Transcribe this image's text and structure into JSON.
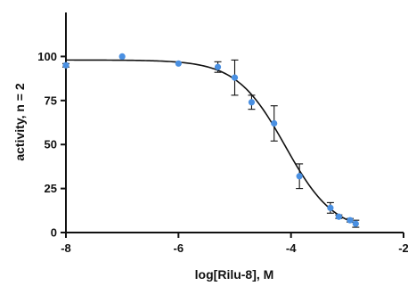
{
  "chart_data": {
    "type": "scatter",
    "title": "",
    "xlabel": "log[Rilu-8], M",
    "ylabel": "activity, n = 2",
    "xlim": [
      -8,
      -2
    ],
    "ylim": [
      0,
      125
    ],
    "x_ticks": [
      -8,
      -6,
      -4,
      -2
    ],
    "y_ticks": [
      0,
      25,
      50,
      75,
      100
    ],
    "x_tick_labels": [
      "-8",
      "-6",
      "-4",
      "-2"
    ],
    "y_tick_labels": [
      "0",
      "25",
      "50",
      "75",
      "100"
    ],
    "grid": false,
    "legend": "none",
    "marker_color": "#4a90e2",
    "curve_color": "#111111",
    "points": [
      {
        "x": -8.0,
        "y": 95,
        "err": 1
      },
      {
        "x": -7.0,
        "y": 100,
        "err": 0
      },
      {
        "x": -6.0,
        "y": 96,
        "err": 0
      },
      {
        "x": -5.3,
        "y": 94,
        "err": 3
      },
      {
        "x": -5.0,
        "y": 88,
        "err": 10
      },
      {
        "x": -4.7,
        "y": 74,
        "err": 4
      },
      {
        "x": -4.3,
        "y": 62,
        "err": 10
      },
      {
        "x": -3.85,
        "y": 32,
        "err": 7
      },
      {
        "x": -3.3,
        "y": 14,
        "err": 3
      },
      {
        "x": -3.15,
        "y": 9,
        "err": 1
      },
      {
        "x": -2.95,
        "y": 7,
        "err": 1
      },
      {
        "x": -2.85,
        "y": 5,
        "err": 2
      }
    ],
    "fit": {
      "model": "four-parameter logistic",
      "top": 98,
      "bottom": 0,
      "log_ic50": -4.1,
      "hill_slope": -1,
      "x_range": [
        -8,
        -2.85
      ]
    }
  }
}
